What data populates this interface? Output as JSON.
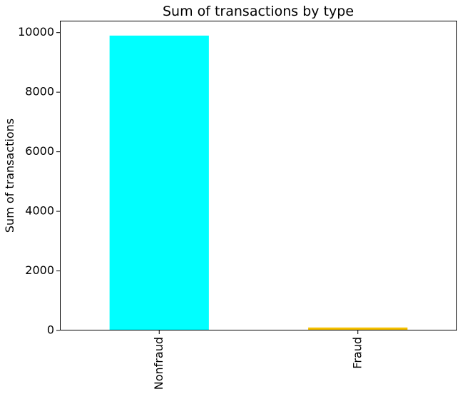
{
  "chart_data": {
    "type": "bar",
    "title": "Sum of transactions by type",
    "xlabel": "",
    "ylabel": "Sum of transactions",
    "categories": [
      "Nonfraud",
      "Fraud"
    ],
    "values": [
      9900,
      100
    ],
    "colors": [
      "#00ffff",
      "#f5c000"
    ],
    "ylim": [
      0,
      10400
    ],
    "yticks": [
      0,
      2000,
      4000,
      6000,
      8000,
      10000
    ],
    "ytick_labels": [
      "0",
      "2000",
      "4000",
      "6000",
      "8000",
      "10000"
    ],
    "grid": false,
    "legend": "none"
  }
}
